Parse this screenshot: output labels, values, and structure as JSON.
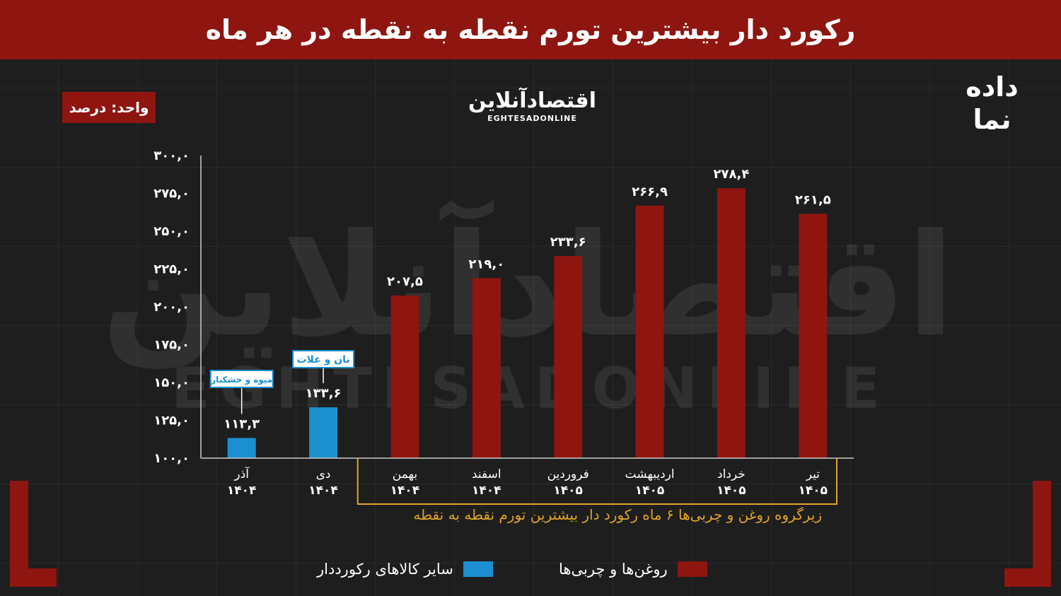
{
  "header": {
    "title": "رکورد دار بیشترین تورم نقطه به نقطه در هر ماه"
  },
  "unit_label": "واحد: درصد",
  "logo": {
    "fa": "اقتصادآنلاین",
    "en": "EGHTESADONLINE"
  },
  "brand": {
    "line1": "داده",
    "line2": "نما"
  },
  "colors": {
    "fats": "#8e1510",
    "others": "#1b8fd0",
    "highlight": "#e0a52a",
    "background": "#1e1e1e"
  },
  "chart_data": {
    "type": "bar",
    "ylim": [
      100,
      300
    ],
    "yticks": [
      "۱۰۰,۰",
      "۱۲۵,۰",
      "۱۵۰,۰",
      "۱۷۵,۰",
      "۲۰۰,۰",
      "۲۲۵,۰",
      "۲۵۰,۰",
      "۲۷۵,۰",
      "۳۰۰,۰"
    ],
    "ytick_values": [
      100,
      125,
      150,
      175,
      200,
      225,
      250,
      275,
      300
    ],
    "categories": [
      {
        "month": "آذر",
        "year": "۱۴۰۴"
      },
      {
        "month": "دی",
        "year": "۱۴۰۴"
      },
      {
        "month": "بهمن",
        "year": "۱۴۰۴"
      },
      {
        "month": "اسفند",
        "year": "۱۴۰۴"
      },
      {
        "month": "فروردین",
        "year": "۱۴۰۵"
      },
      {
        "month": "اردیبهشت",
        "year": "۱۴۰۵"
      },
      {
        "month": "خرداد",
        "year": "۱۴۰۵"
      },
      {
        "month": "تیر",
        "year": "۱۴۰۵"
      }
    ],
    "values": [
      113.3,
      133.6,
      207.5,
      219.0,
      233.6,
      266.9,
      278.4,
      261.5
    ],
    "value_labels": [
      "۱۱۳,۳",
      "۱۳۳,۶",
      "۲۰۷,۵",
      "۲۱۹,۰",
      "۲۳۳,۶",
      "۲۶۶,۹",
      "۲۷۸,۴",
      "۲۶۱,۵"
    ],
    "groups": [
      "others",
      "others",
      "fats",
      "fats",
      "fats",
      "fats",
      "fats",
      "fats"
    ],
    "annotations": [
      {
        "index": 0,
        "text": "میوه و خشکبار"
      },
      {
        "index": 1,
        "text": "نان و غلات"
      }
    ],
    "highlight_note": "زیرگروه روغن و چربی‌ها ۶ ماه رکورد دار بیشترین تورم نقطه به نقطه",
    "legend": [
      {
        "key": "fats",
        "label": "روغن‌ها و چربی‌ها"
      },
      {
        "key": "others",
        "label": "سایر کالاهای رکورددار"
      }
    ]
  }
}
